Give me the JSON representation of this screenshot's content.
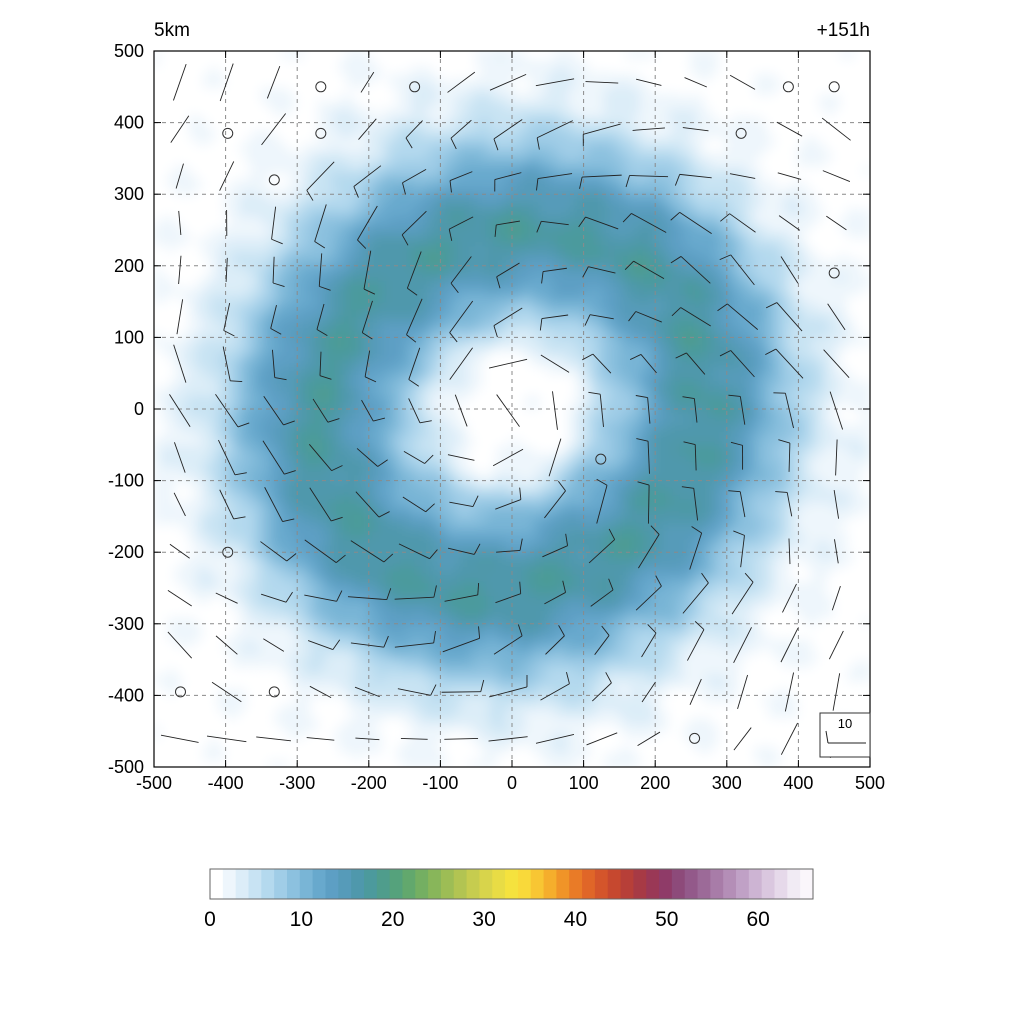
{
  "chart_data": {
    "type": "heatmap",
    "title_left": "5km",
    "title_right": "+151h",
    "xlim": [
      -500,
      500
    ],
    "ylim": [
      -500,
      500
    ],
    "x_ticks": [
      "-500",
      "-400",
      "-300",
      "-200",
      "-100",
      "0",
      "100",
      "200",
      "300",
      "400",
      "500"
    ],
    "y_ticks": [
      "500",
      "400",
      "300",
      "200",
      "100",
      "0",
      "-100",
      "-200",
      "-300",
      "-400",
      "-500"
    ],
    "grid": true,
    "field": {
      "description": "ring-shaped precipitation/reflectivity field centered near origin",
      "ring_radius": 260,
      "ring_peak_value": 14,
      "background_value": 3,
      "eye_value": 0
    },
    "wind_barbs": {
      "grid_spacing": 65.5,
      "circulation": "cyclonic",
      "calm_points": [
        [
          -267,
          450
        ],
        [
          -136,
          450
        ],
        [
          386,
          450
        ],
        [
          450,
          450
        ],
        [
          -397,
          385
        ],
        [
          -267,
          385
        ],
        [
          320,
          385
        ],
        [
          -332,
          320
        ],
        [
          450,
          190
        ],
        [
          124,
          -70
        ],
        [
          -397,
          -200
        ],
        [
          -463,
          -395
        ],
        [
          -332,
          -395
        ],
        [
          255,
          -460
        ]
      ]
    },
    "reference_vector": {
      "label": "10"
    },
    "colorbar": {
      "min": 0,
      "max": 66,
      "ticks": [
        "0",
        "10",
        "20",
        "30",
        "40",
        "50",
        "60"
      ],
      "colors": [
        "#ffffff",
        "#eef6fc",
        "#dcedf8",
        "#c8e3f3",
        "#b4d9ee",
        "#a0cde7",
        "#8cc1df",
        "#79b5d6",
        "#68a9cd",
        "#5d9fc4",
        "#569bb9",
        "#4f98ac",
        "#4c9a9d",
        "#4f9d8c",
        "#55a27c",
        "#62a86d",
        "#74af62",
        "#88b65a",
        "#9dbd55",
        "#b2c452",
        "#c6cc4f",
        "#d8d44b",
        "#e8dc45",
        "#f5e23e",
        "#f9d93a",
        "#f8c633",
        "#f5ae2c",
        "#f09428",
        "#e97b27",
        "#e06628",
        "#d4552b",
        "#c6482f",
        "#b73f38",
        "#a73a45",
        "#9a3856",
        "#8f3b68",
        "#8d4a7a",
        "#93598a",
        "#9c6a98",
        "#a87ca8",
        "#b48eb7",
        "#c0a1c6",
        "#cdb4d3",
        "#dac7df",
        "#e6d9ea",
        "#f1ebf4",
        "#faf6fb"
      ]
    }
  }
}
